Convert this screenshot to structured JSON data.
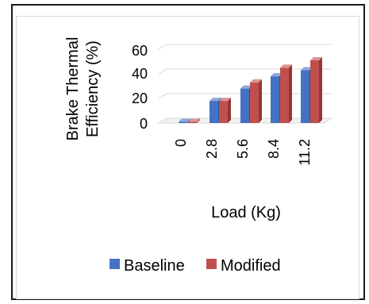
{
  "chart_data": {
    "type": "bar",
    "categories": [
      "0",
      "2.8",
      "5.6",
      "8.4",
      "11.2"
    ],
    "series": [
      {
        "name": "Baseline",
        "values": [
          1,
          18,
          28,
          38,
          43
        ]
      },
      {
        "name": "Modified",
        "values": [
          1,
          18,
          33,
          45,
          51
        ]
      }
    ],
    "ylabel_line1": "Brake Thermal",
    "ylabel_line2": "Efficiency (%)",
    "xlabel": "Load (Kg)",
    "y_ticks": [
      "60",
      "40",
      "20",
      "0"
    ],
    "ylim": [
      0,
      60
    ],
    "grid": true,
    "legend_position": "bottom",
    "colors": {
      "baseline": "#4472c4",
      "modified": "#c0504d",
      "grid": "#d9d9d9"
    }
  }
}
